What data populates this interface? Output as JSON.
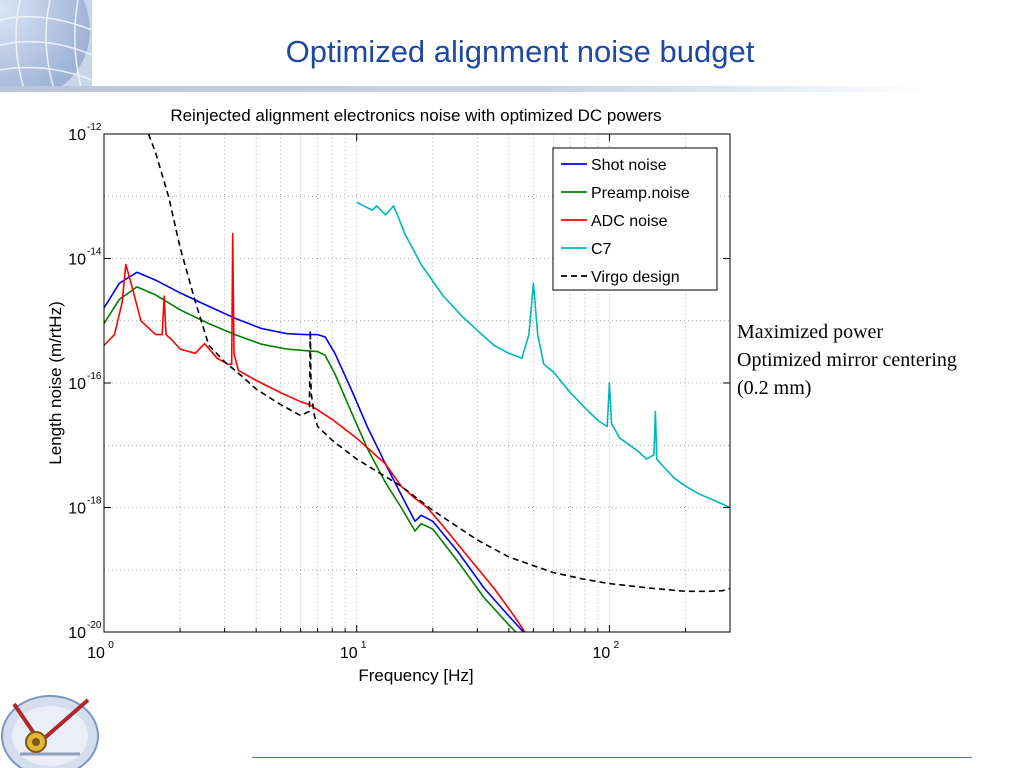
{
  "slide": {
    "title": "Optimized alignment noise budget",
    "notes": [
      "Maximized power",
      "Optimized mirror centering",
      "(0.2 mm)"
    ]
  },
  "chart_data": {
    "type": "line",
    "title": "Reinjected alignment electronics noise with optimized DC powers",
    "xlabel": "Frequency [Hz]",
    "ylabel": "Length noise (m/rtHz)",
    "xscale": "log",
    "yscale": "log",
    "xlim": [
      1,
      300
    ],
    "ylim": [
      1e-20,
      1e-12
    ],
    "grid": true,
    "legend_position": "top-right",
    "x_ticks": [
      {
        "base": "10",
        "exp": "0"
      },
      {
        "base": "10",
        "exp": "1"
      },
      {
        "base": "10",
        "exp": "2"
      }
    ],
    "y_ticks": [
      {
        "base": "10",
        "exp": "-12"
      },
      {
        "base": "10",
        "exp": "-14"
      },
      {
        "base": "10",
        "exp": "-16"
      },
      {
        "base": "10",
        "exp": "-18"
      },
      {
        "base": "10",
        "exp": "-20"
      }
    ],
    "series": [
      {
        "name": "Shot noise",
        "color": "#0000ff",
        "dash": "solid",
        "x": [
          1.0,
          1.15,
          1.35,
          1.6,
          2.0,
          2.6,
          3.3,
          4.2,
          5.3,
          6.3,
          7.0,
          7.5,
          8.2,
          9.5,
          11,
          13,
          15,
          17,
          18,
          20,
          25,
          32,
          40,
          48
        ],
        "y": [
          1.6e-15,
          4e-15,
          6e-15,
          4.5e-15,
          2.8e-15,
          1.7e-15,
          1.1e-15,
          7.5e-16,
          6.2e-16,
          6e-16,
          6e-16,
          5.5e-16,
          3e-16,
          8e-17,
          2e-17,
          5e-18,
          1.6e-18,
          6e-19,
          7.5e-19,
          6e-19,
          2e-19,
          5e-20,
          1.8e-20,
          8e-21
        ]
      },
      {
        "name": "Preamp.noise",
        "color": "#008000",
        "dash": "solid",
        "x": [
          1.0,
          1.15,
          1.35,
          1.6,
          2.0,
          2.6,
          3.3,
          4.2,
          5.3,
          6.3,
          7.0,
          7.5,
          8.2,
          9.5,
          11,
          13,
          15,
          17,
          18,
          20,
          25,
          32,
          40,
          45
        ],
        "y": [
          9e-16,
          2.2e-15,
          3.5e-15,
          2.6e-15,
          1.5e-15,
          9e-16,
          6e-16,
          4.2e-16,
          3.5e-16,
          3.3e-16,
          3.2e-16,
          2.8e-16,
          1.4e-16,
          3.5e-17,
          9e-18,
          2.5e-18,
          1e-18,
          4.2e-19,
          5.5e-19,
          4.5e-19,
          1.4e-19,
          3.5e-20,
          1.3e-20,
          8e-21
        ]
      },
      {
        "name": "ADC noise",
        "color": "#ff0000",
        "dash": "solid",
        "x": [
          1.0,
          1.1,
          1.18,
          1.22,
          1.28,
          1.4,
          1.6,
          1.7,
          1.73,
          1.76,
          1.85,
          2.0,
          2.3,
          2.5,
          2.8,
          3.1,
          3.2,
          3.23,
          3.27,
          3.4,
          4.0,
          5.0,
          6.0,
          6.5,
          8.0,
          10.0,
          13,
          15,
          17,
          19,
          22,
          28,
          35,
          42,
          48
        ],
        "y": [
          4e-16,
          6e-16,
          2e-15,
          8e-15,
          4e-15,
          1e-15,
          6e-16,
          6e-16,
          2.5e-15,
          6e-16,
          5e-16,
          3.5e-16,
          3e-16,
          4.3e-16,
          2.5e-16,
          2e-16,
          2e-16,
          2.5e-14,
          3e-16,
          1.6e-16,
          1.1e-16,
          7e-17,
          5e-17,
          4.5e-17,
          2.6e-17,
          1.3e-17,
          5e-18,
          2.2e-18,
          1.4e-18,
          1e-18,
          5e-19,
          1.5e-19,
          5e-20,
          1.8e-20,
          8e-21
        ]
      },
      {
        "name": "C7",
        "color": "#00b7b7",
        "dash": "solid",
        "x": [
          10.0,
          11.5,
          12,
          13,
          14,
          14.5,
          15.5,
          18,
          22,
          26,
          30,
          35,
          40,
          45,
          48,
          50,
          52,
          55,
          60,
          70,
          80,
          90,
          98,
          100,
          102,
          110,
          130,
          140,
          150,
          152,
          154,
          160,
          180,
          200,
          230,
          260,
          300
        ],
        "y": [
          8e-14,
          6e-14,
          7e-14,
          5e-14,
          7e-14,
          5e-14,
          2.5e-14,
          8e-15,
          2.5e-15,
          1.2e-15,
          7e-16,
          4e-16,
          3e-16,
          2.5e-16,
          6e-16,
          4e-15,
          6e-16,
          2e-16,
          1.5e-16,
          7e-17,
          4e-17,
          2.5e-17,
          2e-17,
          1e-16,
          2.2e-17,
          1.3e-17,
          8e-18,
          6e-18,
          7e-18,
          3.5e-17,
          6e-18,
          5e-18,
          3e-18,
          2.2e-18,
          1.6e-18,
          1.3e-18,
          1e-18
        ]
      },
      {
        "name": "Virgo design",
        "color": "#000000",
        "dash": "dashed",
        "x": [
          1.5,
          1.6,
          1.8,
          2.0,
          2.3,
          2.6,
          3.0,
          3.5,
          4.0,
          5.0,
          6.0,
          6.5,
          6.55,
          6.6,
          6.8,
          7.0,
          8.0,
          10,
          15,
          20,
          30,
          40,
          60,
          80,
          100,
          150,
          200,
          250,
          280,
          300
        ],
        "y": [
          1e-12,
          5e-13,
          1e-13,
          1.5e-14,
          2e-15,
          4e-16,
          2.2e-16,
          1.3e-16,
          8e-17,
          4.5e-17,
          3e-17,
          3.5e-17,
          7e-16,
          7e-17,
          3e-17,
          2e-17,
          1.2e-17,
          6e-18,
          2.2e-18,
          9e-19,
          3e-19,
          1.6e-19,
          9e-20,
          7e-20,
          6e-20,
          5e-20,
          4.5e-20,
          4.5e-20,
          4.6e-20,
          5e-20
        ]
      }
    ]
  }
}
